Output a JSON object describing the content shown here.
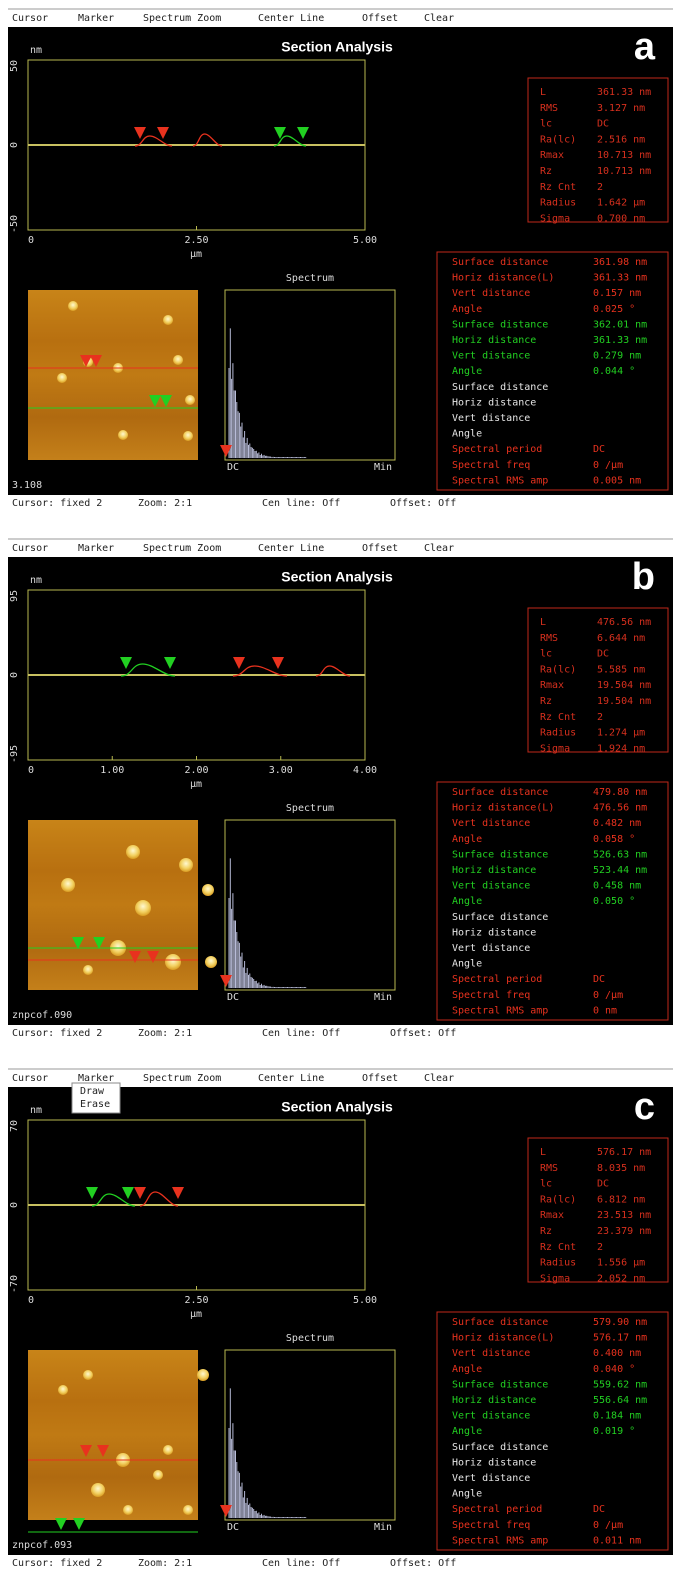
{
  "menu": [
    "Cursor",
    "Marker",
    "Spectrum Zoom",
    "Center Line",
    "Offset",
    "Clear"
  ],
  "title": "Section Analysis",
  "y_unit": "nm",
  "x_unit": "µm",
  "spectrum": {
    "title": "Spectrum",
    "left": "DC",
    "right": "Min"
  },
  "status": [
    "Cursor: fixed 2",
    "Zoom: 2:1",
    "Cen line: Off",
    "Offset: Off"
  ],
  "panels": [
    {
      "letter": "a",
      "yticks": [
        "50",
        "0",
        "-50"
      ],
      "xticks": [
        "0",
        "2.50",
        "5.00"
      ],
      "stats": [
        [
          "L",
          "361.33 nm"
        ],
        [
          "RMS",
          "3.127 nm"
        ],
        [
          "lc",
          "DC"
        ],
        [
          "Ra(lc)",
          "2.516 nm"
        ],
        [
          "Rmax",
          "10.713 nm"
        ],
        [
          "Rz",
          "10.713 nm"
        ],
        [
          "Rz Cnt",
          "2"
        ],
        [
          "Radius",
          "1.642 µm"
        ],
        [
          "Sigma",
          "0.700 nm"
        ]
      ],
      "groups": [
        {
          "color": "#e8321e",
          "rows": [
            [
              "Surface distance",
              "361.98 nm"
            ],
            [
              "Horiz distance(L)",
              "361.33 nm"
            ],
            [
              "Vert distance",
              "0.157 nm"
            ],
            [
              "Angle",
              "0.025 °"
            ]
          ]
        },
        {
          "color": "#22d022",
          "rows": [
            [
              "Surface distance",
              "362.01 nm"
            ],
            [
              "Horiz distance",
              "361.33 nm"
            ],
            [
              "Vert distance",
              "0.279 nm"
            ],
            [
              "Angle",
              "0.044 °"
            ]
          ]
        },
        {
          "color": "#e6e6e6",
          "rows": [
            [
              "Surface distance"
            ],
            [
              "Horiz distance"
            ],
            [
              "Vert distance"
            ],
            [
              "Angle"
            ]
          ]
        },
        {
          "color": "#e8321e",
          "rows": [
            [
              "Spectral period",
              "DC"
            ],
            [
              "Spectral freq",
              "0 /µm"
            ],
            [
              "Spectral RMS amp",
              "0.005 nm"
            ]
          ]
        }
      ],
      "file": "3.108"
    },
    {
      "letter": "b",
      "yticks": [
        "95",
        "0",
        "-95"
      ],
      "xticks": [
        "0",
        "1.00",
        "2.00",
        "3.00",
        "4.00"
      ],
      "stats": [
        [
          "L",
          "476.56 nm"
        ],
        [
          "RMS",
          "6.644 nm"
        ],
        [
          "lc",
          "DC"
        ],
        [
          "Ra(lc)",
          "5.585 nm"
        ],
        [
          "Rmax",
          "19.504 nm"
        ],
        [
          "Rz",
          "19.504 nm"
        ],
        [
          "Rz Cnt",
          "2"
        ],
        [
          "Radius",
          "1.274 µm"
        ],
        [
          "Sigma",
          "1.924 nm"
        ]
      ],
      "groups": [
        {
          "color": "#e8321e",
          "rows": [
            [
              "Surface distance",
              "479.80 nm"
            ],
            [
              "Horiz distance(L)",
              "476.56 nm"
            ],
            [
              "Vert distance",
              "0.482 nm"
            ],
            [
              "Angle",
              "0.058 °"
            ]
          ]
        },
        {
          "color": "#22d022",
          "rows": [
            [
              "Surface distance",
              "526.63 nm"
            ],
            [
              "Horiz distance",
              "523.44 nm"
            ],
            [
              "Vert distance",
              "0.458 nm"
            ],
            [
              "Angle",
              "0.050 °"
            ]
          ]
        },
        {
          "color": "#e6e6e6",
          "rows": [
            [
              "Surface distance"
            ],
            [
              "Horiz distance"
            ],
            [
              "Vert distance"
            ],
            [
              "Angle"
            ]
          ]
        },
        {
          "color": "#e8321e",
          "rows": [
            [
              "Spectral period",
              "DC"
            ],
            [
              "Spectral freq",
              "0 /µm"
            ],
            [
              "Spectral RMS amp",
              "0 nm"
            ]
          ]
        }
      ],
      "file": "znpcof.090"
    },
    {
      "letter": "c",
      "yticks": [
        "70",
        "0",
        "-70"
      ],
      "xticks": [
        "0",
        "2.50",
        "5.00"
      ],
      "stats": [
        [
          "L",
          "576.17 nm"
        ],
        [
          "RMS",
          "8.035 nm"
        ],
        [
          "lc",
          "DC"
        ],
        [
          "Ra(lc)",
          "6.812 nm"
        ],
        [
          "Rmax",
          "23.513 nm"
        ],
        [
          "Rz",
          "23.379 nm"
        ],
        [
          "Rz Cnt",
          "2"
        ],
        [
          "Radius",
          "1.556 µm"
        ],
        [
          "Sigma",
          "2.052 nm"
        ]
      ],
      "groups": [
        {
          "color": "#e8321e",
          "rows": [
            [
              "Surface distance",
              "579.90 nm"
            ],
            [
              "Horiz distance(L)",
              "576.17 nm"
            ],
            [
              "Vert distance",
              "0.400 nm"
            ],
            [
              "Angle",
              "0.040 °"
            ]
          ]
        },
        {
          "color": "#22d022",
          "rows": [
            [
              "Surface distance",
              "559.62 nm"
            ],
            [
              "Horiz distance",
              "556.64 nm"
            ],
            [
              "Vert distance",
              "0.184 nm"
            ],
            [
              "Angle",
              "0.019 °"
            ]
          ]
        },
        {
          "color": "#e6e6e6",
          "rows": [
            [
              "Surface distance"
            ],
            [
              "Horiz distance"
            ],
            [
              "Vert distance"
            ],
            [
              "Angle"
            ]
          ]
        },
        {
          "color": "#e8321e",
          "rows": [
            [
              "Spectral period",
              "DC"
            ],
            [
              "Spectral freq",
              "0 /µm"
            ],
            [
              "Spectral RMS amp",
              "0.011 nm"
            ]
          ]
        }
      ],
      "file": "znpcof.093",
      "dropdown": [
        "Draw",
        "Erase"
      ]
    }
  ]
}
